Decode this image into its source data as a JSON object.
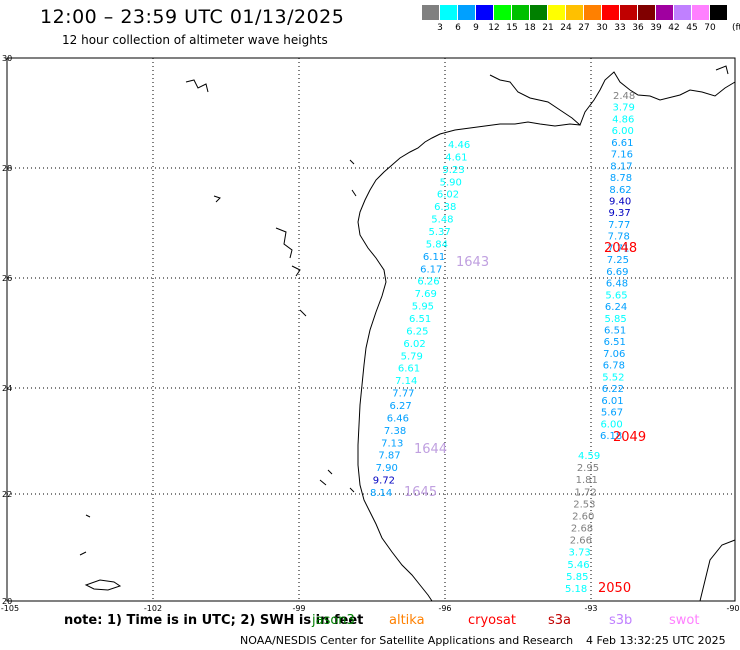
{
  "title": "12:00 – 23:59 UTC 01/13/2025",
  "subtitle": "12 hour collection of altimeter wave heights",
  "legend": {
    "labels": [
      "3",
      "6",
      "9",
      "12",
      "15",
      "18",
      "21",
      "24",
      "27",
      "30",
      "33",
      "36",
      "39",
      "42",
      "45",
      "70"
    ],
    "colors": [
      "#808080",
      "#00ffff",
      "#00a0ff",
      "#0000ff",
      "#00ff00",
      "#00c000",
      "#008000",
      "#ffff00",
      "#ffc000",
      "#ff8000",
      "#ff0000",
      "#c00000",
      "#800000",
      "#a000a0",
      "#c080ff",
      "#ff80ff",
      "#000000"
    ],
    "unit": "(ft)"
  },
  "axes": {
    "lat_labels": [
      "30",
      "28",
      "26",
      "24",
      "22",
      "20"
    ],
    "lon_labels": [
      "-105",
      "-102",
      "-99",
      "-96",
      "-93",
      "-90"
    ]
  },
  "tracks": {
    "west": {
      "values": [
        "4.46",
        "4.61",
        "5.23",
        "5.90",
        "6.02",
        "6.38",
        "5.48",
        "5.37",
        "5.84",
        "6.11",
        "6.17",
        "6.26",
        "7.69",
        "5.95",
        "6.51",
        "6.25",
        "6.02",
        "5.79",
        "6.61",
        "7.14",
        "7.77",
        "6.27",
        "6.46",
        "7.38",
        "7.13",
        "7.87",
        "7.90",
        "9.72",
        "8.14"
      ],
      "colors": [
        "#00ffff",
        "#00ffff",
        "#00ffff",
        "#00ffff",
        "#00ffff",
        "#00ffff",
        "#00ffff",
        "#00ffff",
        "#00ffff",
        "#00a0ff",
        "#00a0ff",
        "#00ffff",
        "#00ffff",
        "#00ffff",
        "#00ffff",
        "#00ffff",
        "#00ffff",
        "#00ffff",
        "#00ffff",
        "#00ffff",
        "#00a0ff",
        "#00a0ff",
        "#00a0ff",
        "#00a0ff",
        "#00a0ff",
        "#00a0ff",
        "#00a0ff",
        "#0000c0",
        "#00a0ff"
      ]
    },
    "east": {
      "values": [
        "2.48",
        "3.79",
        "4.86",
        "6.00",
        "6.61",
        "7.16",
        "8.17",
        "8.78",
        "8.62",
        "9.40",
        "9.37",
        "7.77",
        "7.78",
        "7.71",
        "7.25",
        "6.69",
        "6.48",
        "5.65",
        "6.24",
        "5.85",
        "6.51",
        "6.51",
        "7.06",
        "6.78",
        "5.52",
        "6.22",
        "6.01",
        "5.67",
        "6.00",
        "6.18",
        "4.59",
        "2.95",
        "1.81",
        "1.72",
        "2.53",
        "2.60",
        "2.68",
        "2.66",
        "3.73",
        "5.46",
        "5.85",
        "5.18"
      ],
      "colors": [
        "#808080",
        "#00ffff",
        "#00ffff",
        "#00ffff",
        "#00a0ff",
        "#00a0ff",
        "#00a0ff",
        "#00a0ff",
        "#00a0ff",
        "#0000c0",
        "#0000c0",
        "#00a0ff",
        "#00a0ff",
        "#00a0ff",
        "#00a0ff",
        "#00a0ff",
        "#00a0ff",
        "#00ffff",
        "#00a0ff",
        "#00ffff",
        "#00a0ff",
        "#00a0ff",
        "#00a0ff",
        "#00a0ff",
        "#00ffff",
        "#00a0ff",
        "#00a0ff",
        "#00a0ff",
        "#00ffff",
        "#00a0ff",
        "#00ffff",
        "#808080",
        "#808080",
        "#808080",
        "#808080",
        "#808080",
        "#808080",
        "#808080",
        "#00ffff",
        "#00ffff",
        "#00ffff",
        "#00ffff"
      ]
    }
  },
  "pass_times": [
    {
      "label": "1643",
      "color": "#c0a0e0"
    },
    {
      "label": "2048",
      "color": "#ff0000"
    },
    {
      "label": "1644",
      "color": "#c0a0e0"
    },
    {
      "label": "2049",
      "color": "#ff0000"
    },
    {
      "label": "1645",
      "color": "#c0a0e0"
    },
    {
      "label": "2050",
      "color": "#ff0000"
    }
  ],
  "note": "note: 1) Time is in UTC; 2) SWH is in feet",
  "missions": [
    {
      "label": "jason3",
      "color": "#008000"
    },
    {
      "label": "altika",
      "color": "#ff8000"
    },
    {
      "label": "cryosat",
      "color": "#ff0000"
    },
    {
      "label": "s3a",
      "color": "#c00000"
    },
    {
      "label": "s3b",
      "color": "#c080ff"
    },
    {
      "label": "swot",
      "color": "#ff80ff"
    }
  ],
  "footer": {
    "credit": "NOAA/NESDIS Center for Satellite Applications and Research",
    "timestamp": "4 Feb 13:32:25 UTC 2025"
  }
}
